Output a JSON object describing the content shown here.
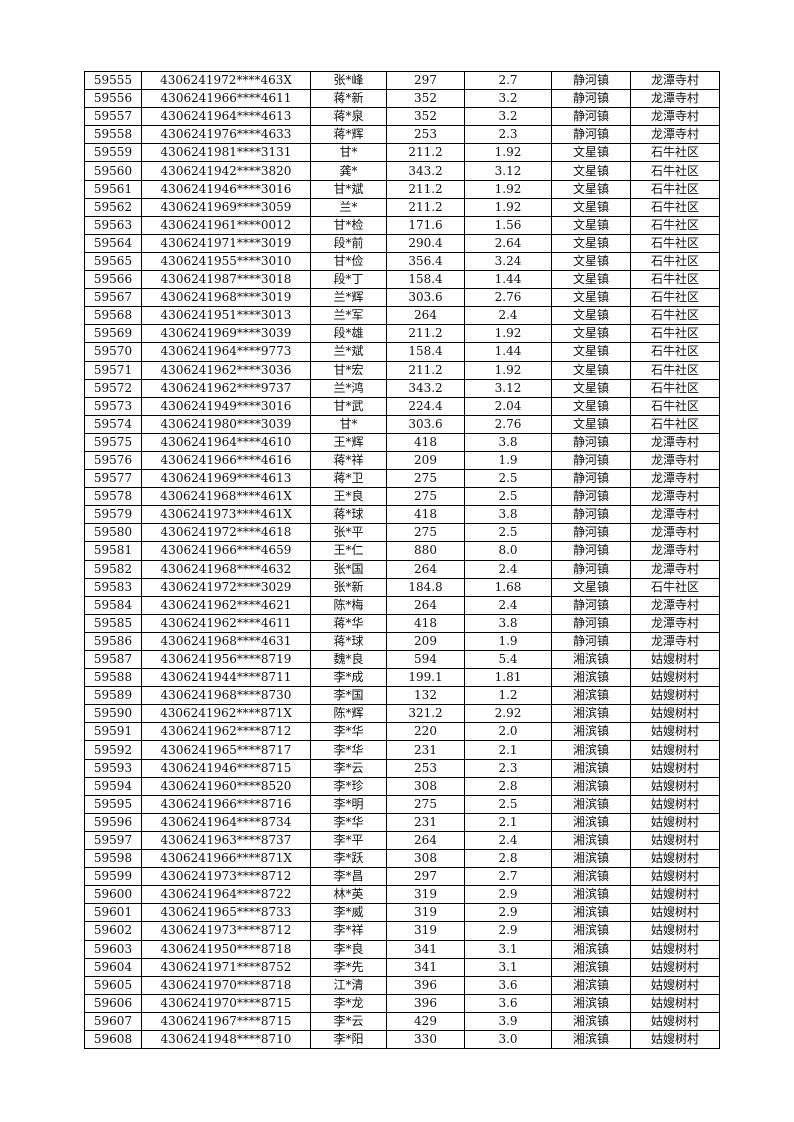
{
  "table": {
    "rows": [
      [
        "59555",
        "4306241972****463X",
        "张*峰",
        "297",
        "2.7",
        "静河镇",
        "龙潭寺村"
      ],
      [
        "59556",
        "4306241966****4611",
        "蒋*新",
        "352",
        "3.2",
        "静河镇",
        "龙潭寺村"
      ],
      [
        "59557",
        "4306241964****4613",
        "蒋*泉",
        "352",
        "3.2",
        "静河镇",
        "龙潭寺村"
      ],
      [
        "59558",
        "4306241976****4633",
        "蒋*辉",
        "253",
        "2.3",
        "静河镇",
        "龙潭寺村"
      ],
      [
        "59559",
        "4306241981****3131",
        "甘*",
        "211.2",
        "1.92",
        "文星镇",
        "石牛社区"
      ],
      [
        "59560",
        "4306241942****3820",
        "龚*",
        "343.2",
        "3.12",
        "文星镇",
        "石牛社区"
      ],
      [
        "59561",
        "4306241946****3016",
        "甘*斌",
        "211.2",
        "1.92",
        "文星镇",
        "石牛社区"
      ],
      [
        "59562",
        "4306241969****3059",
        "兰*",
        "211.2",
        "1.92",
        "文星镇",
        "石牛社区"
      ],
      [
        "59563",
        "4306241961****0012",
        "甘*检",
        "171.6",
        "1.56",
        "文星镇",
        "石牛社区"
      ],
      [
        "59564",
        "4306241971****3019",
        "段*前",
        "290.4",
        "2.64",
        "文星镇",
        "石牛社区"
      ],
      [
        "59565",
        "4306241955****3010",
        "甘*俭",
        "356.4",
        "3.24",
        "文星镇",
        "石牛社区"
      ],
      [
        "59566",
        "4306241987****3018",
        "段*丁",
        "158.4",
        "1.44",
        "文星镇",
        "石牛社区"
      ],
      [
        "59567",
        "4306241968****3019",
        "兰*辉",
        "303.6",
        "2.76",
        "文星镇",
        "石牛社区"
      ],
      [
        "59568",
        "4306241951****3013",
        "兰*军",
        "264",
        "2.4",
        "文星镇",
        "石牛社区"
      ],
      [
        "59569",
        "4306241969****3039",
        "段*雄",
        "211.2",
        "1.92",
        "文星镇",
        "石牛社区"
      ],
      [
        "59570",
        "4306241964****9773",
        "兰*斌",
        "158.4",
        "1.44",
        "文星镇",
        "石牛社区"
      ],
      [
        "59571",
        "4306241962****3036",
        "甘*宏",
        "211.2",
        "1.92",
        "文星镇",
        "石牛社区"
      ],
      [
        "59572",
        "4306241962****9737",
        "兰*鸿",
        "343.2",
        "3.12",
        "文星镇",
        "石牛社区"
      ],
      [
        "59573",
        "4306241949****3016",
        "甘*武",
        "224.4",
        "2.04",
        "文星镇",
        "石牛社区"
      ],
      [
        "59574",
        "4306241980****3039",
        "甘*",
        "303.6",
        "2.76",
        "文星镇",
        "石牛社区"
      ],
      [
        "59575",
        "4306241964****4610",
        "王*辉",
        "418",
        "3.8",
        "静河镇",
        "龙潭寺村"
      ],
      [
        "59576",
        "4306241966****4616",
        "蒋*祥",
        "209",
        "1.9",
        "静河镇",
        "龙潭寺村"
      ],
      [
        "59577",
        "4306241969****4613",
        "蒋*卫",
        "275",
        "2.5",
        "静河镇",
        "龙潭寺村"
      ],
      [
        "59578",
        "4306241968****461X",
        "王*良",
        "275",
        "2.5",
        "静河镇",
        "龙潭寺村"
      ],
      [
        "59579",
        "4306241973****461X",
        "蒋*球",
        "418",
        "3.8",
        "静河镇",
        "龙潭寺村"
      ],
      [
        "59580",
        "4306241972****4618",
        "张*平",
        "275",
        "2.5",
        "静河镇",
        "龙潭寺村"
      ],
      [
        "59581",
        "4306241966****4659",
        "王*仁",
        "880",
        "8.0",
        "静河镇",
        "龙潭寺村"
      ],
      [
        "59582",
        "4306241968****4632",
        "张*国",
        "264",
        "2.4",
        "静河镇",
        "龙潭寺村"
      ],
      [
        "59583",
        "4306241972****3029",
        "张*新",
        "184.8",
        "1.68",
        "文星镇",
        "石牛社区"
      ],
      [
        "59584",
        "4306241962****4621",
        "陈*梅",
        "264",
        "2.4",
        "静河镇",
        "龙潭寺村"
      ],
      [
        "59585",
        "4306241962****4611",
        "蒋*华",
        "418",
        "3.8",
        "静河镇",
        "龙潭寺村"
      ],
      [
        "59586",
        "4306241968****4631",
        "蒋*球",
        "209",
        "1.9",
        "静河镇",
        "龙潭寺村"
      ],
      [
        "59587",
        "4306241956****8719",
        "魏*良",
        "594",
        "5.4",
        "湘滨镇",
        "姑嫂树村"
      ],
      [
        "59588",
        "4306241944****8711",
        "李*成",
        "199.1",
        "1.81",
        "湘滨镇",
        "姑嫂树村"
      ],
      [
        "59589",
        "4306241968****8730",
        "李*国",
        "132",
        "1.2",
        "湘滨镇",
        "姑嫂树村"
      ],
      [
        "59590",
        "4306241962****871X",
        "陈*辉",
        "321.2",
        "2.92",
        "湘滨镇",
        "姑嫂树村"
      ],
      [
        "59591",
        "4306241962****8712",
        "李*华",
        "220",
        "2.0",
        "湘滨镇",
        "姑嫂树村"
      ],
      [
        "59592",
        "4306241965****8717",
        "李*华",
        "231",
        "2.1",
        "湘滨镇",
        "姑嫂树村"
      ],
      [
        "59593",
        "4306241946****8715",
        "李*云",
        "253",
        "2.3",
        "湘滨镇",
        "姑嫂树村"
      ],
      [
        "59594",
        "4306241960****8520",
        "李*珍",
        "308",
        "2.8",
        "湘滨镇",
        "姑嫂树村"
      ],
      [
        "59595",
        "4306241966****8716",
        "李*明",
        "275",
        "2.5",
        "湘滨镇",
        "姑嫂树村"
      ],
      [
        "59596",
        "4306241964****8734",
        "李*华",
        "231",
        "2.1",
        "湘滨镇",
        "姑嫂树村"
      ],
      [
        "59597",
        "4306241963****8737",
        "李*平",
        "264",
        "2.4",
        "湘滨镇",
        "姑嫂树村"
      ],
      [
        "59598",
        "4306241966****871X",
        "李*跃",
        "308",
        "2.8",
        "湘滨镇",
        "姑嫂树村"
      ],
      [
        "59599",
        "4306241973****8712",
        "李*昌",
        "297",
        "2.7",
        "湘滨镇",
        "姑嫂树村"
      ],
      [
        "59600",
        "4306241964****8722",
        "林*英",
        "319",
        "2.9",
        "湘滨镇",
        "姑嫂树村"
      ],
      [
        "59601",
        "4306241965****8733",
        "李*威",
        "319",
        "2.9",
        "湘滨镇",
        "姑嫂树村"
      ],
      [
        "59602",
        "4306241973****8712",
        "李*祥",
        "319",
        "2.9",
        "湘滨镇",
        "姑嫂树村"
      ],
      [
        "59603",
        "4306241950****8718",
        "李*良",
        "341",
        "3.1",
        "湘滨镇",
        "姑嫂树村"
      ],
      [
        "59604",
        "4306241971****8752",
        "李*先",
        "341",
        "3.1",
        "湘滨镇",
        "姑嫂树村"
      ],
      [
        "59605",
        "4306241970****8718",
        "江*清",
        "396",
        "3.6",
        "湘滨镇",
        "姑嫂树村"
      ],
      [
        "59606",
        "4306241970****8715",
        "李*龙",
        "396",
        "3.6",
        "湘滨镇",
        "姑嫂树村"
      ],
      [
        "59607",
        "4306241967****8715",
        "李*云",
        "429",
        "3.9",
        "湘滨镇",
        "姑嫂树村"
      ],
      [
        "59608",
        "4306241948****8710",
        "李*阳",
        "330",
        "3.0",
        "湘滨镇",
        "姑嫂树村"
      ]
    ]
  }
}
